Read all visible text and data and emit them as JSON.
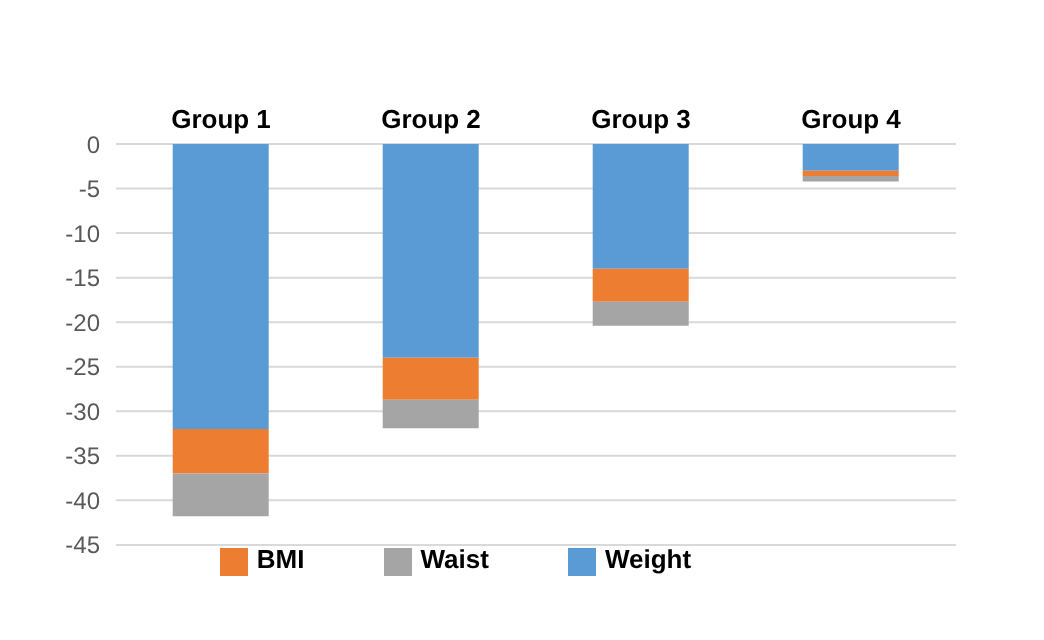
{
  "chart_data": {
    "type": "bar",
    "stacked": true,
    "categories": [
      "Group 1",
      "Group 2",
      "Group 3",
      "Group 4"
    ],
    "series": [
      {
        "name": "Weight",
        "color": "#5b9bd5",
        "values": [
          -32,
          -24,
          -14,
          -3
        ]
      },
      {
        "name": "BMI",
        "color": "#ed7d31",
        "values": [
          -5,
          -4.7,
          -3.7,
          -0.6
        ]
      },
      {
        "name": "Waist",
        "color": "#a5a5a5",
        "values": [
          -4.8,
          -3.2,
          -2.7,
          -0.6
        ]
      }
    ],
    "ylim": [
      -45,
      0
    ],
    "yticks": [
      -45,
      -40,
      -35,
      -30,
      -25,
      -20,
      -15,
      -10,
      -5,
      0
    ],
    "grid": "y",
    "legend": "bottom"
  }
}
